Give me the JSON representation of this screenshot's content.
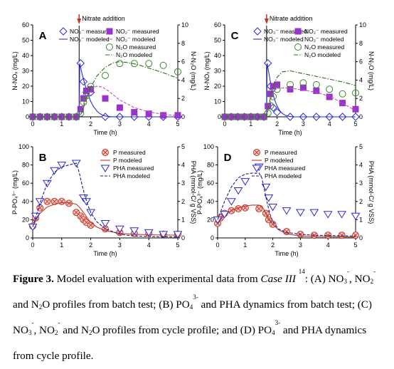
{
  "chart_data": [
    {
      "panel": "A",
      "type": "line",
      "xlabel": "Time (h)",
      "ylabel": "N-NOₓ (mg/L)",
      "y2label": "N-N₂O (mg/L)",
      "xlim": [
        0,
        5
      ],
      "ylim": [
        0,
        60
      ],
      "y2lim": [
        0,
        10
      ],
      "xticks": [
        0,
        1,
        2,
        3,
        4,
        5
      ],
      "yticks": [
        0,
        10,
        20,
        30,
        40,
        50,
        60
      ],
      "y2ticks": [
        0,
        2,
        4,
        6,
        8,
        10
      ],
      "event_x": 1.6,
      "event_label": "Nitrate addition",
      "series": [
        {
          "name": "NO₃⁻ measured",
          "marker": "diamond",
          "axis": "left",
          "color": "#2a2ad8",
          "x": [
            0,
            0.25,
            0.5,
            0.75,
            1,
            1.25,
            1.5,
            1.65,
            1.75,
            1.85,
            2,
            2.5,
            3,
            3.5,
            4,
            4.5,
            5
          ],
          "y": [
            0,
            0,
            0,
            0,
            0,
            0,
            0,
            35,
            23,
            16,
            16,
            0,
            0,
            0,
            0,
            0,
            0
          ]
        },
        {
          "name": "NO₃⁻ modeled",
          "style": "solid",
          "axis": "left",
          "color": "#2a2ad8",
          "x": [
            0,
            1.6,
            1.62,
            1.7,
            1.8,
            1.9,
            2.0,
            2.1,
            2.2,
            2.3,
            2.4,
            2.5,
            2.7,
            3,
            5
          ],
          "y": [
            0,
            0,
            35,
            28,
            21,
            15,
            10,
            6.5,
            4,
            2.3,
            1.2,
            0.5,
            0.1,
            0,
            0
          ]
        },
        {
          "name": "NO₂⁻ measured",
          "marker": "square",
          "axis": "left",
          "color": "#9933cc",
          "x": [
            0,
            0.25,
            0.5,
            0.75,
            1,
            1.25,
            1.5,
            1.65,
            1.75,
            1.85,
            2,
            2.5,
            3,
            3.5,
            4,
            4.5,
            5
          ],
          "y": [
            0,
            0,
            0,
            0,
            0,
            0,
            0,
            5,
            12,
            17,
            18,
            12,
            6,
            3,
            2,
            1,
            1
          ]
        },
        {
          "name": "NO₂⁻ modeled",
          "style": "dashed",
          "axis": "left",
          "color": "#c052c0",
          "x": [
            0,
            1.6,
            1.7,
            1.8,
            1.9,
            2.0,
            2.2,
            2.4,
            2.6,
            2.8,
            3.0,
            3.5,
            4.0,
            4.5,
            5.0
          ],
          "y": [
            0,
            0,
            6,
            11,
            15,
            18,
            20,
            19.5,
            17,
            14,
            11,
            6,
            3.2,
            1.6,
            0.8
          ]
        },
        {
          "name": "N₂O measured",
          "marker": "circle",
          "axis": "right",
          "color": "#3a8a2a",
          "x": [
            0,
            0.25,
            0.5,
            0.75,
            1,
            1.25,
            1.5,
            1.65,
            1.75,
            1.85,
            2,
            2.5,
            3,
            3.5,
            4,
            4.5,
            5
          ],
          "y": [
            0,
            0,
            0,
            0,
            0,
            0,
            0,
            0.4,
            1.6,
            2.3,
            3.3,
            4.5,
            5.8,
            5.8,
            5.8,
            5.6,
            4.9
          ]
        },
        {
          "name": "N₂O modeled",
          "style": "dashdot",
          "axis": "right",
          "color": "#2f6a1f",
          "x": [
            0,
            1.6,
            1.7,
            1.8,
            2.0,
            2.2,
            2.5,
            2.8,
            3.0,
            3.3,
            3.6,
            4.0,
            4.5,
            5.0
          ],
          "y": [
            0,
            0,
            0.5,
            1.5,
            3.2,
            4.4,
            5.4,
            5.9,
            6.0,
            5.9,
            5.7,
            5.3,
            4.8,
            4.2
          ]
        }
      ]
    },
    {
      "panel": "C",
      "type": "line",
      "xlabel": "Time (h)",
      "ylabel": "N-NOₓ (mg/L)",
      "y2label": "N-N₂O (mg/L)",
      "xlim": [
        0,
        5
      ],
      "ylim": [
        0,
        60
      ],
      "y2lim": [
        0,
        10
      ],
      "xticks": [
        0,
        1,
        2,
        3,
        4,
        5
      ],
      "yticks": [
        0,
        10,
        20,
        30,
        40,
        50,
        60
      ],
      "y2ticks": [
        0,
        2,
        4,
        6,
        8,
        10
      ],
      "event_x": 1.6,
      "event_label": "Nitrate addition",
      "series": [
        {
          "name": "NO₃⁻ measured",
          "marker": "diamond",
          "axis": "left",
          "color": "#2a2ad8",
          "x": [
            0,
            0.25,
            0.5,
            0.75,
            1,
            1.25,
            1.5,
            1.65,
            1.75,
            1.85,
            2,
            2.5,
            3,
            3.5,
            4,
            4.5,
            5
          ],
          "y": [
            0,
            0,
            0,
            0,
            0,
            0,
            0,
            35,
            20,
            6,
            3,
            0,
            0,
            0,
            0,
            0,
            0
          ]
        },
        {
          "name": "NO₃⁻ modeled",
          "style": "solid",
          "axis": "left",
          "color": "#2a2ad8",
          "x": [
            0,
            1.6,
            1.62,
            1.7,
            1.8,
            1.9,
            2.0,
            2.1,
            2.2,
            2.3,
            2.4,
            2.5,
            2.6,
            2.8,
            5
          ],
          "y": [
            0,
            0,
            35,
            27,
            18,
            11.5,
            7,
            4,
            2.2,
            1.1,
            0.5,
            0.2,
            0.05,
            0,
            0
          ]
        },
        {
          "name": "NO₂⁻ measured",
          "marker": "square",
          "axis": "left",
          "color": "#9933cc",
          "x": [
            0,
            0.25,
            0.5,
            0.75,
            1,
            1.25,
            1.5,
            1.65,
            1.75,
            1.85,
            2,
            2.5,
            3,
            3.5,
            4,
            4.5,
            5
          ],
          "y": [
            0,
            0,
            0,
            0,
            0,
            0,
            0,
            7,
            15,
            20,
            21,
            18,
            19,
            17,
            13,
            9,
            5
          ]
        },
        {
          "name": "NO₂⁻ modeled",
          "style": "dashed",
          "axis": "left",
          "color": "#c052c0",
          "x": [
            0,
            1.6,
            1.7,
            1.8,
            1.9,
            2.0,
            2.3,
            2.6,
            3.0,
            3.5,
            4.0,
            4.5,
            5.0
          ],
          "y": [
            0,
            0,
            8,
            14,
            17,
            18.5,
            19,
            18.5,
            17.5,
            16,
            13.5,
            9,
            4
          ]
        },
        {
          "name": "N₂O measured",
          "marker": "circle",
          "axis": "right",
          "color": "#3a8a2a",
          "x": [
            0,
            0.25,
            0.5,
            0.75,
            1,
            1.25,
            1.5,
            1.65,
            1.75,
            1.85,
            2,
            2.5,
            3,
            3.5,
            4,
            4.5,
            5
          ],
          "y": [
            0,
            0,
            0,
            0,
            0,
            0,
            0,
            0.4,
            1.2,
            2.2,
            3.0,
            3.5,
            3.7,
            3.5,
            3.0,
            2.5,
            2.6
          ]
        },
        {
          "name": "N₂O modeled",
          "style": "dashdot",
          "axis": "right",
          "color": "#2f6a1f",
          "x": [
            0,
            1.6,
            1.7,
            1.8,
            1.9,
            2.0,
            2.2,
            2.5,
            3.0,
            3.5,
            4.0,
            4.5,
            5.0
          ],
          "y": [
            0,
            0,
            1.5,
            2.8,
            3.7,
            4.3,
            4.9,
            5.0,
            4.7,
            4.4,
            4.1,
            3.8,
            3.4
          ]
        }
      ]
    },
    {
      "panel": "B",
      "type": "line",
      "xlabel": "Time (h)",
      "ylabel": "P-PO₄³⁻ (mg/L)",
      "y2label": "PHA (mmol-C/ g VSS)",
      "xlim": [
        0,
        5
      ],
      "ylim": [
        0,
        100
      ],
      "y2lim": [
        0,
        5
      ],
      "xticks": [
        0,
        1,
        2,
        3,
        4,
        5
      ],
      "yticks": [
        0,
        20,
        40,
        60,
        80,
        100
      ],
      "y2ticks": [
        0,
        1,
        2,
        3,
        4,
        5
      ],
      "series": [
        {
          "name": "P measured",
          "marker": "circle-x",
          "axis": "left",
          "color": "#c0392b",
          "x": [
            0,
            0.1,
            0.25,
            0.5,
            0.75,
            1,
            1.25,
            1.5,
            1.65,
            1.75,
            1.85,
            2,
            2.5,
            3,
            3.5,
            4,
            4.5,
            5
          ],
          "y": [
            13,
            22,
            33,
            40,
            40,
            40,
            38,
            28,
            24,
            20,
            17,
            14,
            10,
            6,
            5,
            5,
            4,
            4
          ]
        },
        {
          "name": "P modeled",
          "style": "solid",
          "axis": "left",
          "color": "#c0392b",
          "x": [
            0,
            0.1,
            0.25,
            0.5,
            0.75,
            1.0,
            1.25,
            1.5,
            1.6,
            1.75,
            1.9,
            2.0,
            2.2,
            2.5,
            3.0,
            3.5,
            4,
            5
          ],
          "y": [
            11,
            19,
            27,
            34,
            37,
            38.5,
            38.5,
            37,
            34,
            28,
            21,
            17,
            12,
            8,
            5,
            4,
            3.5,
            3
          ]
        },
        {
          "name": "PHA measured",
          "marker": "triangle-down",
          "axis": "right",
          "color": "#2a2ad8",
          "x": [
            0,
            0.1,
            0.25,
            0.5,
            0.75,
            1.0,
            1.5,
            1.75,
            1.85,
            2,
            2.5,
            3,
            3.5,
            4,
            4.5,
            5
          ],
          "y": [
            0.6,
            1.2,
            2.0,
            3.0,
            3.7,
            4.0,
            4.1,
            2.2,
            2.0,
            1.4,
            0.8,
            0.5,
            0.4,
            0.3,
            0.2,
            0.2
          ]
        },
        {
          "name": "PHA modeled",
          "style": "dashed",
          "axis": "right",
          "color": "#1a1a8a",
          "x": [
            0,
            0.1,
            0.25,
            0.5,
            0.75,
            1.0,
            1.25,
            1.5,
            1.6,
            1.7,
            1.8,
            1.9,
            2.0,
            2.2,
            2.5,
            3.0,
            3.5,
            4,
            5
          ],
          "y": [
            0.6,
            1.1,
            1.9,
            3.0,
            3.6,
            3.9,
            4.0,
            4.1,
            3.6,
            2.9,
            2.3,
            1.8,
            1.4,
            0.9,
            0.5,
            0.2,
            0.1,
            0.08,
            0.05
          ]
        }
      ]
    },
    {
      "panel": "D",
      "type": "line",
      "xlabel": "Time (h)",
      "ylabel": "P-PO₄³⁻ (mg/L)",
      "y2label": "PHA (mmol-C/ g VSS)",
      "xlim": [
        0,
        5
      ],
      "ylim": [
        0,
        100
      ],
      "y2lim": [
        0,
        5
      ],
      "xticks": [
        0,
        1,
        2,
        3,
        4,
        5
      ],
      "yticks": [
        0,
        20,
        40,
        60,
        80,
        100
      ],
      "y2ticks": [
        0,
        1,
        2,
        3,
        4,
        5
      ],
      "series": [
        {
          "name": "P measured",
          "marker": "circle-x",
          "axis": "left",
          "color": "#c0392b",
          "x": [
            0,
            0.1,
            0.25,
            0.5,
            0.75,
            1,
            1.5,
            1.75,
            1.85,
            2,
            2.5,
            3,
            3.5,
            4,
            4.5,
            5
          ],
          "y": [
            16,
            22,
            27,
            30,
            32,
            33,
            32,
            27,
            20,
            15,
            7,
            4,
            3,
            3,
            3,
            3
          ]
        },
        {
          "name": "P modeled",
          "style": "solid",
          "axis": "left",
          "color": "#c0392b",
          "x": [
            0,
            0.1,
            0.25,
            0.5,
            0.75,
            1.0,
            1.25,
            1.5,
            1.6,
            1.7,
            1.8,
            2.0,
            2.2,
            2.5,
            3.0,
            3.5,
            5
          ],
          "y": [
            15,
            20,
            25,
            30,
            33,
            35,
            36,
            36,
            35,
            30,
            24,
            15,
            9,
            4.5,
            2,
            1.5,
            1
          ]
        },
        {
          "name": "PHA measured",
          "marker": "triangle-down",
          "axis": "right",
          "color": "#2a2ad8",
          "x": [
            0,
            0.25,
            0.5,
            0.75,
            1.0,
            1.5,
            1.75,
            1.85,
            2,
            2.5,
            3,
            3.5,
            4,
            4.5,
            5
          ],
          "y": [
            1.0,
            1.3,
            2.0,
            2.6,
            3.1,
            3.9,
            2.8,
            2.2,
            1.7,
            1.5,
            1.4,
            1.4,
            1.3,
            1.3,
            1.2
          ]
        },
        {
          "name": "PHA modeled",
          "style": "dashed",
          "axis": "right",
          "color": "#1a1a8a",
          "x": [
            0,
            0.1,
            0.25,
            0.5,
            0.75,
            1.0,
            1.25,
            1.5,
            1.6,
            1.7,
            1.8,
            1.9,
            2.0,
            2.2,
            2.5,
            3.0,
            3.5,
            5
          ],
          "y": [
            1.0,
            1.4,
            2.0,
            2.8,
            3.3,
            3.5,
            3.55,
            3.55,
            3.3,
            2.6,
            1.9,
            1.3,
            0.9,
            0.5,
            0.3,
            0.2,
            0.15,
            0.1
          ]
        }
      ]
    }
  ],
  "caption": {
    "figure_label": "Figure 3.",
    "part1": " Model evaluation with experimental data from ",
    "case_name": "Case III",
    "ref": "14",
    "part2": ": (A) NO",
    "p3": ", NO",
    "p4": " and N",
    "p5": "O profiles from batch test; (B) PO",
    "p6": " and PHA dynamics from batch test; (C) NO",
    "p7": ", NO",
    "p8": " and N",
    "p9": "O profiles from cycle profile; and (D) PO",
    "p10": " and PHA dynamics from cycle profile.",
    "sub3": "3",
    "sub2": "2",
    "sub4": "4",
    "minus": "-",
    "threeminus": "3-"
  }
}
